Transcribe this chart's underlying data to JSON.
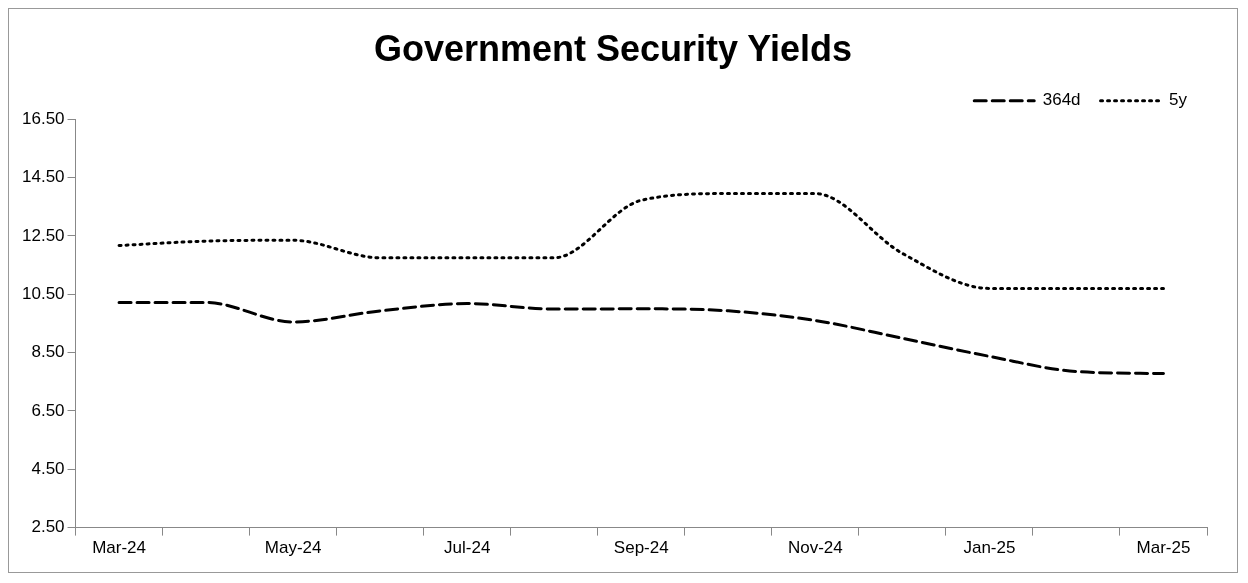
{
  "chart_data": {
    "type": "line",
    "title": "Government Security Yields",
    "categories": [
      "Mar-24",
      null,
      "May-24",
      null,
      "Jul-24",
      null,
      "Sep-24",
      null,
      "Nov-24",
      null,
      "Jan-25",
      null,
      "Mar-25"
    ],
    "series": [
      {
        "name": "364d",
        "color": "#000000",
        "line_style": "dashed",
        "values": [
          10.22,
          10.22,
          9.55,
          9.93,
          10.18,
          9.99,
          10.0,
          9.93,
          9.6,
          8.99,
          8.37,
          7.85,
          7.78
        ]
      },
      {
        "name": "5y",
        "color": "#000000",
        "line_style": "dotted",
        "values": [
          12.17,
          12.32,
          12.35,
          11.75,
          11.75,
          11.75,
          13.72,
          13.95,
          13.95,
          11.9,
          10.7,
          10.7,
          10.7
        ]
      }
    ],
    "ylim": [
      2.5,
      16.5
    ],
    "yticks": [
      {
        "value": 2.5,
        "label": "2.50"
      },
      {
        "value": 4.5,
        "label": "4.50"
      },
      {
        "value": 6.5,
        "label": "6.50"
      },
      {
        "value": 8.5,
        "label": "8.50"
      },
      {
        "value": 10.5,
        "label": "10.50"
      },
      {
        "value": 12.5,
        "label": "12.50"
      },
      {
        "value": 14.5,
        "label": "14.50"
      },
      {
        "value": 16.5,
        "label": "16.50"
      }
    ],
    "grid": false,
    "legend": "top right",
    "marker": "none"
  }
}
